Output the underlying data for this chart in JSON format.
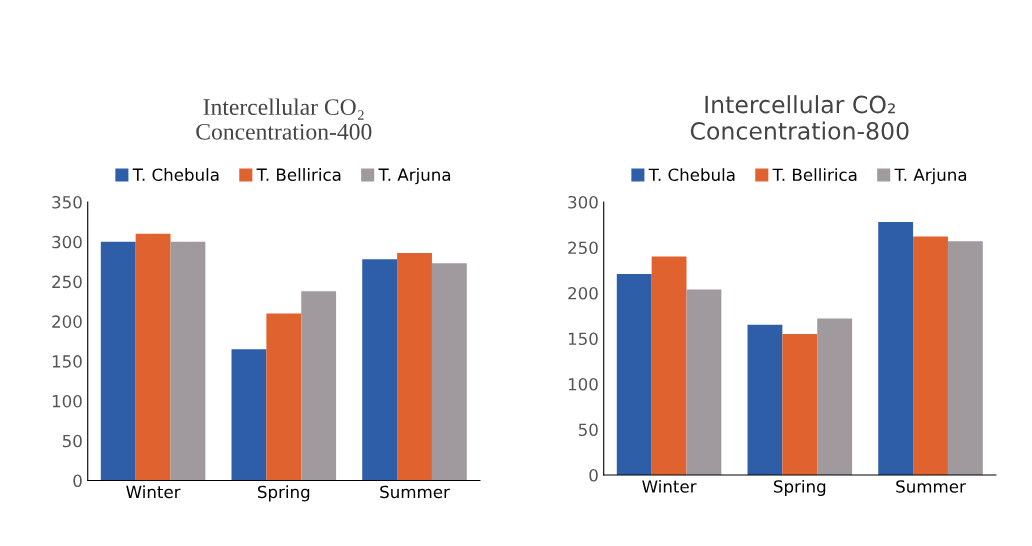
{
  "chart_data": [
    {
      "type": "bar",
      "title": "Intercellular CO₂\nConcentration-400",
      "categories": [
        "Winter",
        "Spring",
        "Summer"
      ],
      "series": [
        {
          "name": "T. Chebula",
          "color": "#2e5ea8",
          "values": [
            300,
            165,
            278
          ]
        },
        {
          "name": "T. Bellirica",
          "color": "#e0622e",
          "values": [
            310,
            210,
            286
          ]
        },
        {
          "name": "T. Arjuna",
          "color": "#a09a9e",
          "values": [
            300,
            238,
            273
          ]
        }
      ],
      "ylim": [
        0,
        350
      ],
      "yticks": [
        0,
        50,
        100,
        150,
        200,
        250,
        300,
        350
      ],
      "legend": "top",
      "grid": false
    },
    {
      "type": "bar",
      "title": "Intercellular CO₂\nConcentration-800",
      "categories": [
        "Winter",
        "Spring",
        "Summer"
      ],
      "series": [
        {
          "name": "T. Chebula",
          "color": "#2e5ea8",
          "values": [
            221,
            165,
            278
          ]
        },
        {
          "name": "T. Bellirica",
          "color": "#e0622e",
          "values": [
            240,
            155,
            262
          ]
        },
        {
          "name": "T. Arjuna",
          "color": "#a09a9e",
          "values": [
            204,
            172,
            257
          ]
        }
      ],
      "ylim": [
        0,
        300
      ],
      "yticks": [
        0,
        50,
        100,
        150,
        200,
        250,
        300
      ],
      "legend": "top",
      "grid": false
    }
  ]
}
